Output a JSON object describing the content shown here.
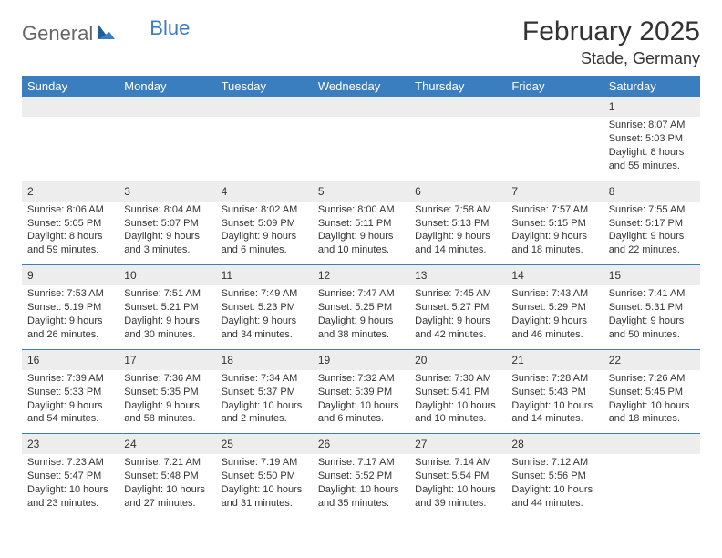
{
  "brand": {
    "part1": "General",
    "part2": "Blue"
  },
  "title": "February 2025",
  "location": "Stade, Germany",
  "colors": {
    "header_bg": "#3b7ec0",
    "header_text": "#ffffff",
    "daynum_bg": "#ededed",
    "row_divider": "#3b7ec0",
    "text": "#333333",
    "logo_gray": "#666666",
    "logo_blue": "#3b7ec0",
    "page_bg": "#ffffff"
  },
  "fonts": {
    "title_size_pt": 22,
    "location_size_pt": 14,
    "weekday_size_pt": 10,
    "daynum_size_pt": 9,
    "body_size_pt": 8
  },
  "weekdays": [
    "Sunday",
    "Monday",
    "Tuesday",
    "Wednesday",
    "Thursday",
    "Friday",
    "Saturday"
  ],
  "weeks": [
    [
      null,
      null,
      null,
      null,
      null,
      null,
      {
        "day": "1",
        "sunrise": "Sunrise: 8:07 AM",
        "sunset": "Sunset: 5:03 PM",
        "daylight1": "Daylight: 8 hours",
        "daylight2": "and 55 minutes."
      }
    ],
    [
      {
        "day": "2",
        "sunrise": "Sunrise: 8:06 AM",
        "sunset": "Sunset: 5:05 PM",
        "daylight1": "Daylight: 8 hours",
        "daylight2": "and 59 minutes."
      },
      {
        "day": "3",
        "sunrise": "Sunrise: 8:04 AM",
        "sunset": "Sunset: 5:07 PM",
        "daylight1": "Daylight: 9 hours",
        "daylight2": "and 3 minutes."
      },
      {
        "day": "4",
        "sunrise": "Sunrise: 8:02 AM",
        "sunset": "Sunset: 5:09 PM",
        "daylight1": "Daylight: 9 hours",
        "daylight2": "and 6 minutes."
      },
      {
        "day": "5",
        "sunrise": "Sunrise: 8:00 AM",
        "sunset": "Sunset: 5:11 PM",
        "daylight1": "Daylight: 9 hours",
        "daylight2": "and 10 minutes."
      },
      {
        "day": "6",
        "sunrise": "Sunrise: 7:58 AM",
        "sunset": "Sunset: 5:13 PM",
        "daylight1": "Daylight: 9 hours",
        "daylight2": "and 14 minutes."
      },
      {
        "day": "7",
        "sunrise": "Sunrise: 7:57 AM",
        "sunset": "Sunset: 5:15 PM",
        "daylight1": "Daylight: 9 hours",
        "daylight2": "and 18 minutes."
      },
      {
        "day": "8",
        "sunrise": "Sunrise: 7:55 AM",
        "sunset": "Sunset: 5:17 PM",
        "daylight1": "Daylight: 9 hours",
        "daylight2": "and 22 minutes."
      }
    ],
    [
      {
        "day": "9",
        "sunrise": "Sunrise: 7:53 AM",
        "sunset": "Sunset: 5:19 PM",
        "daylight1": "Daylight: 9 hours",
        "daylight2": "and 26 minutes."
      },
      {
        "day": "10",
        "sunrise": "Sunrise: 7:51 AM",
        "sunset": "Sunset: 5:21 PM",
        "daylight1": "Daylight: 9 hours",
        "daylight2": "and 30 minutes."
      },
      {
        "day": "11",
        "sunrise": "Sunrise: 7:49 AM",
        "sunset": "Sunset: 5:23 PM",
        "daylight1": "Daylight: 9 hours",
        "daylight2": "and 34 minutes."
      },
      {
        "day": "12",
        "sunrise": "Sunrise: 7:47 AM",
        "sunset": "Sunset: 5:25 PM",
        "daylight1": "Daylight: 9 hours",
        "daylight2": "and 38 minutes."
      },
      {
        "day": "13",
        "sunrise": "Sunrise: 7:45 AM",
        "sunset": "Sunset: 5:27 PM",
        "daylight1": "Daylight: 9 hours",
        "daylight2": "and 42 minutes."
      },
      {
        "day": "14",
        "sunrise": "Sunrise: 7:43 AM",
        "sunset": "Sunset: 5:29 PM",
        "daylight1": "Daylight: 9 hours",
        "daylight2": "and 46 minutes."
      },
      {
        "day": "15",
        "sunrise": "Sunrise: 7:41 AM",
        "sunset": "Sunset: 5:31 PM",
        "daylight1": "Daylight: 9 hours",
        "daylight2": "and 50 minutes."
      }
    ],
    [
      {
        "day": "16",
        "sunrise": "Sunrise: 7:39 AM",
        "sunset": "Sunset: 5:33 PM",
        "daylight1": "Daylight: 9 hours",
        "daylight2": "and 54 minutes."
      },
      {
        "day": "17",
        "sunrise": "Sunrise: 7:36 AM",
        "sunset": "Sunset: 5:35 PM",
        "daylight1": "Daylight: 9 hours",
        "daylight2": "and 58 minutes."
      },
      {
        "day": "18",
        "sunrise": "Sunrise: 7:34 AM",
        "sunset": "Sunset: 5:37 PM",
        "daylight1": "Daylight: 10 hours",
        "daylight2": "and 2 minutes."
      },
      {
        "day": "19",
        "sunrise": "Sunrise: 7:32 AM",
        "sunset": "Sunset: 5:39 PM",
        "daylight1": "Daylight: 10 hours",
        "daylight2": "and 6 minutes."
      },
      {
        "day": "20",
        "sunrise": "Sunrise: 7:30 AM",
        "sunset": "Sunset: 5:41 PM",
        "daylight1": "Daylight: 10 hours",
        "daylight2": "and 10 minutes."
      },
      {
        "day": "21",
        "sunrise": "Sunrise: 7:28 AM",
        "sunset": "Sunset: 5:43 PM",
        "daylight1": "Daylight: 10 hours",
        "daylight2": "and 14 minutes."
      },
      {
        "day": "22",
        "sunrise": "Sunrise: 7:26 AM",
        "sunset": "Sunset: 5:45 PM",
        "daylight1": "Daylight: 10 hours",
        "daylight2": "and 18 minutes."
      }
    ],
    [
      {
        "day": "23",
        "sunrise": "Sunrise: 7:23 AM",
        "sunset": "Sunset: 5:47 PM",
        "daylight1": "Daylight: 10 hours",
        "daylight2": "and 23 minutes."
      },
      {
        "day": "24",
        "sunrise": "Sunrise: 7:21 AM",
        "sunset": "Sunset: 5:48 PM",
        "daylight1": "Daylight: 10 hours",
        "daylight2": "and 27 minutes."
      },
      {
        "day": "25",
        "sunrise": "Sunrise: 7:19 AM",
        "sunset": "Sunset: 5:50 PM",
        "daylight1": "Daylight: 10 hours",
        "daylight2": "and 31 minutes."
      },
      {
        "day": "26",
        "sunrise": "Sunrise: 7:17 AM",
        "sunset": "Sunset: 5:52 PM",
        "daylight1": "Daylight: 10 hours",
        "daylight2": "and 35 minutes."
      },
      {
        "day": "27",
        "sunrise": "Sunrise: 7:14 AM",
        "sunset": "Sunset: 5:54 PM",
        "daylight1": "Daylight: 10 hours",
        "daylight2": "and 39 minutes."
      },
      {
        "day": "28",
        "sunrise": "Sunrise: 7:12 AM",
        "sunset": "Sunset: 5:56 PM",
        "daylight1": "Daylight: 10 hours",
        "daylight2": "and 44 minutes."
      },
      null
    ]
  ]
}
